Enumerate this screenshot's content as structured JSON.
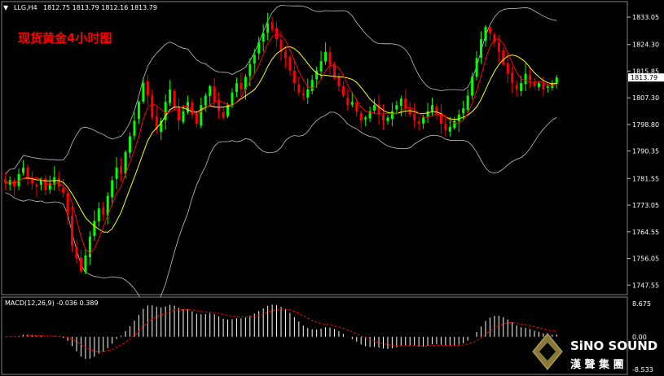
{
  "header": {
    "symbol_text": "LLG,H4",
    "ohlc_text": "1812.75 1813.79 1812.16 1813.79",
    "dropdown_glyph": "▼"
  },
  "chart_title": "现货黄金4小时图",
  "watermark": {
    "brand": "SiNO SOUND",
    "brand_cn": "漢 聲 集 團"
  },
  "colors": {
    "background": "#000000",
    "bull": "#00ff00",
    "bear": "#ff0000",
    "ma_fast": "#ff0000",
    "ma_slow": "#ffff00",
    "bands": "#c0c0c0",
    "macd_hist": "#ffffff",
    "macd_signal": "#ff0000",
    "title": "#ff0000"
  },
  "chart_data": [
    {
      "type": "candlestick",
      "symbol": "LLG",
      "timeframe": "H4",
      "ylim": [
        1744.5,
        1838.0
      ],
      "y_ticks": [
        {
          "value": 1833.05,
          "label": "1833.05"
        },
        {
          "value": 1824.3,
          "label": "1824.30"
        },
        {
          "value": 1815.85,
          "label": "1815.85"
        },
        {
          "value": 1807.3,
          "label": "1807.30"
        },
        {
          "value": 1798.8,
          "label": "1798.80"
        },
        {
          "value": 1790.35,
          "label": "1790.35"
        },
        {
          "value": 1781.55,
          "label": "1781.55"
        },
        {
          "value": 1773.05,
          "label": "1773.05"
        },
        {
          "value": 1764.55,
          "label": "1764.55"
        },
        {
          "value": 1756.05,
          "label": "1756.05"
        },
        {
          "value": 1747.55,
          "label": "1747.55"
        }
      ],
      "current_price": {
        "value": 1813.79,
        "label": "1813.79"
      },
      "closes": [
        1780,
        1781,
        1779,
        1783,
        1785,
        1782,
        1780,
        1779,
        1781,
        1778,
        1780,
        1782,
        1779,
        1777,
        1770,
        1760,
        1756,
        1752,
        1757,
        1763,
        1768,
        1772,
        1770,
        1776,
        1781,
        1785,
        1783,
        1790,
        1795,
        1800,
        1806,
        1812,
        1808,
        1801,
        1797,
        1800,
        1806,
        1810,
        1804,
        1800,
        1803,
        1806,
        1802,
        1799,
        1805,
        1808,
        1811,
        1806,
        1803,
        1801,
        1805,
        1809,
        1812,
        1810,
        1814,
        1818,
        1821,
        1825,
        1828,
        1831,
        1829,
        1826,
        1822,
        1820,
        1816,
        1812,
        1809,
        1808,
        1810,
        1813,
        1816,
        1819,
        1822,
        1818,
        1814,
        1811,
        1808,
        1805,
        1806,
        1803,
        1800,
        1801,
        1803,
        1805,
        1802,
        1800,
        1801,
        1803,
        1805,
        1807,
        1804,
        1802,
        1800,
        1799,
        1801,
        1803,
        1805,
        1802,
        1799,
        1797,
        1798,
        1800,
        1802,
        1804,
        1808,
        1814,
        1820,
        1826,
        1830,
        1828,
        1825,
        1822,
        1818,
        1815,
        1812,
        1810,
        1812,
        1815,
        1813,
        1811,
        1812,
        1810,
        1811,
        1812,
        1813.79
      ],
      "macd": {
        "label": "MACD(12,26,9) -0.036 0.389",
        "ylim": [
          -8.533,
          8.675
        ],
        "y_ticks": [
          {
            "value": 8.675,
            "label": "8.675"
          },
          {
            "value": 0.0,
            "label": "0.00"
          },
          {
            "value": -8.533,
            "label": "-8.533"
          }
        ]
      }
    }
  ]
}
